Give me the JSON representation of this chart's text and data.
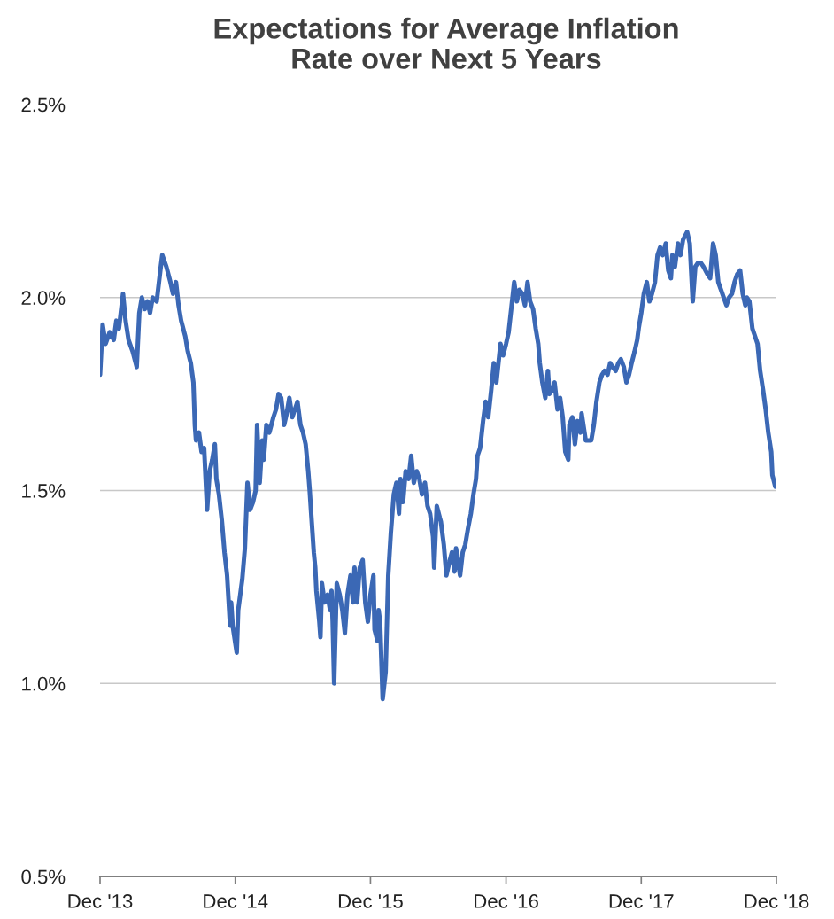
{
  "chart_data": {
    "type": "line",
    "title": "Expectations for Average Inflation\nRate over Next 5 Years",
    "xlim": [
      "2013-12-31",
      "2018-12-31"
    ],
    "xticks": [
      {
        "value": "2013-12-31",
        "label": "Dec '13"
      },
      {
        "value": "2014-12-31",
        "label": "Dec '14"
      },
      {
        "value": "2015-12-31",
        "label": "Dec '15"
      },
      {
        "value": "2016-12-31",
        "label": "Dec '16"
      },
      {
        "value": "2017-12-31",
        "label": "Dec '17"
      },
      {
        "value": "2018-12-31",
        "label": "Dec '18"
      }
    ],
    "ylim": [
      0.5,
      2.5
    ],
    "yticks": [
      {
        "value": 0.5,
        "label": "0.5%"
      },
      {
        "value": 1.0,
        "label": "1.0%"
      },
      {
        "value": 1.5,
        "label": "1.5%"
      },
      {
        "value": 2.0,
        "label": "2.0%"
      },
      {
        "value": 2.5,
        "label": "2.5%"
      }
    ],
    "grid": "y",
    "marker": "none",
    "line_style": "solid",
    "series": [
      {
        "color": "#3b68b5",
        "x": [
          "2013-12-31",
          "2014-01-07",
          "2014-01-15",
          "2014-01-26",
          "2014-02-06",
          "2014-02-13",
          "2014-02-20",
          "2014-03-03",
          "2014-03-10",
          "2014-03-18",
          "2014-03-29",
          "2014-04-09",
          "2014-04-16",
          "2014-04-23",
          "2014-05-01",
          "2014-05-08",
          "2014-05-15",
          "2014-05-22",
          "2014-06-02",
          "2014-06-13",
          "2014-06-17",
          "2014-06-28",
          "2014-07-09",
          "2014-07-16",
          "2014-07-24",
          "2014-07-31",
          "2014-08-07",
          "2014-08-18",
          "2014-08-25",
          "2014-09-02",
          "2014-09-09",
          "2014-09-13",
          "2014-09-16",
          "2014-09-24",
          "2014-10-01",
          "2014-10-08",
          "2014-10-16",
          "2014-10-23",
          "2014-10-30",
          "2014-11-06",
          "2014-11-10",
          "2014-11-17",
          "2014-11-25",
          "2014-12-02",
          "2014-12-09",
          "2014-12-17",
          "2014-12-20",
          "2014-12-24",
          "2015-01-04",
          "2015-01-08",
          "2015-01-19",
          "2015-01-26",
          "2015-02-02",
          "2015-02-09",
          "2015-02-17",
          "2015-02-24",
          "2015-02-28",
          "2015-03-07",
          "2015-03-14",
          "2015-03-18",
          "2015-03-25",
          "2015-04-02",
          "2015-04-13",
          "2015-04-20",
          "2015-04-27",
          "2015-05-04",
          "2015-05-12",
          "2015-05-19",
          "2015-05-26",
          "2015-06-03",
          "2015-06-10",
          "2015-06-17",
          "2015-06-25",
          "2015-07-02",
          "2015-07-09",
          "2015-07-16",
          "2015-07-20",
          "2015-07-24",
          "2015-07-31",
          "2015-08-04",
          "2015-08-07",
          "2015-08-15",
          "2015-08-18",
          "2015-08-22",
          "2015-08-29",
          "2015-09-06",
          "2015-09-13",
          "2015-09-17",
          "2015-09-20",
          "2015-09-24",
          "2015-10-01",
          "2015-10-09",
          "2015-10-16",
          "2015-10-23",
          "2015-10-30",
          "2015-11-07",
          "2015-11-14",
          "2015-11-18",
          "2015-11-25",
          "2015-12-02",
          "2015-12-10",
          "2015-12-17",
          "2015-12-24",
          "2015-12-31",
          "2016-01-08",
          "2016-01-11",
          "2016-01-19",
          "2016-01-22",
          "2016-01-26",
          "2016-02-02",
          "2016-02-10",
          "2016-02-17",
          "2016-02-24",
          "2016-03-03",
          "2016-03-10",
          "2016-03-17",
          "2016-03-21",
          "2016-03-28",
          "2016-04-04",
          "2016-04-12",
          "2016-04-19",
          "2016-04-26",
          "2016-05-04",
          "2016-05-11",
          "2016-05-18",
          "2016-05-26",
          "2016-06-02",
          "2016-06-09",
          "2016-06-17",
          "2016-06-20",
          "2016-06-27",
          "2016-07-05",
          "2016-07-08",
          "2016-07-16",
          "2016-07-23",
          "2016-07-30",
          "2016-08-07",
          "2016-08-14",
          "2016-08-18",
          "2016-08-29",
          "2016-09-05",
          "2016-09-12",
          "2016-09-19",
          "2016-09-27",
          "2016-10-04",
          "2016-10-11",
          "2016-10-15",
          "2016-10-22",
          "2016-10-30",
          "2016-11-06",
          "2016-11-13",
          "2016-11-21",
          "2016-11-28",
          "2016-12-05",
          "2016-12-16",
          "2016-12-23",
          "2016-12-31",
          "2017-01-07",
          "2017-01-14",
          "2017-01-22",
          "2017-01-29",
          "2017-02-05",
          "2017-02-13",
          "2017-02-20",
          "2017-02-27",
          "2017-03-06",
          "2017-03-14",
          "2017-03-21",
          "2017-03-28",
          "2017-04-01",
          "2017-04-08",
          "2017-04-16",
          "2017-04-23",
          "2017-04-27",
          "2017-05-04",
          "2017-05-11",
          "2017-05-19",
          "2017-05-26",
          "2017-06-02",
          "2017-06-09",
          "2017-06-17",
          "2017-06-20",
          "2017-06-28",
          "2017-07-05",
          "2017-07-12",
          "2017-07-20",
          "2017-07-23",
          "2017-08-03",
          "2017-08-11",
          "2017-08-18",
          "2017-08-25",
          "2017-09-01",
          "2017-09-09",
          "2017-09-16",
          "2017-09-23",
          "2017-10-01",
          "2017-10-08",
          "2017-10-15",
          "2017-10-23",
          "2017-10-30",
          "2017-11-06",
          "2017-11-14",
          "2017-11-21",
          "2017-11-28",
          "2017-12-05",
          "2017-12-13",
          "2017-12-20",
          "2017-12-24",
          "2017-12-31",
          "2018-01-07",
          "2018-01-15",
          "2018-01-22",
          "2018-01-29",
          "2018-02-06",
          "2018-02-13",
          "2018-02-20",
          "2018-02-27",
          "2018-03-07",
          "2018-03-14",
          "2018-03-21",
          "2018-03-25",
          "2018-04-01",
          "2018-04-09",
          "2018-04-16",
          "2018-04-23",
          "2018-05-04",
          "2018-05-11",
          "2018-05-19",
          "2018-05-26",
          "2018-06-02",
          "2018-06-10",
          "2018-06-17",
          "2018-06-28",
          "2018-07-05",
          "2018-07-13",
          "2018-07-20",
          "2018-07-27",
          "2018-08-07",
          "2018-08-18",
          "2018-08-25",
          "2018-09-02",
          "2018-09-09",
          "2018-09-16",
          "2018-09-24",
          "2018-10-01",
          "2018-10-08",
          "2018-10-12",
          "2018-10-19",
          "2018-10-27",
          "2018-11-03",
          "2018-11-10",
          "2018-11-17",
          "2018-11-25",
          "2018-12-02",
          "2018-12-09",
          "2018-12-17",
          "2018-12-20",
          "2018-12-28"
        ],
        "values": [
          1.8,
          1.93,
          1.88,
          1.91,
          1.89,
          1.94,
          1.92,
          2.01,
          1.94,
          1.89,
          1.86,
          1.82,
          1.96,
          2.0,
          1.97,
          1.99,
          1.96,
          2.0,
          1.99,
          2.08,
          2.11,
          2.08,
          2.04,
          2.01,
          2.04,
          1.98,
          1.94,
          1.9,
          1.86,
          1.83,
          1.78,
          1.67,
          1.63,
          1.65,
          1.6,
          1.61,
          1.45,
          1.55,
          1.58,
          1.62,
          1.53,
          1.49,
          1.42,
          1.34,
          1.28,
          1.15,
          1.21,
          1.15,
          1.08,
          1.19,
          1.27,
          1.35,
          1.52,
          1.45,
          1.47,
          1.5,
          1.67,
          1.52,
          1.63,
          1.58,
          1.67,
          1.65,
          1.69,
          1.71,
          1.75,
          1.74,
          1.67,
          1.7,
          1.74,
          1.69,
          1.71,
          1.73,
          1.67,
          1.65,
          1.62,
          1.55,
          1.5,
          1.44,
          1.34,
          1.3,
          1.24,
          1.16,
          1.12,
          1.26,
          1.21,
          1.23,
          1.19,
          1.24,
          1.16,
          1.0,
          1.26,
          1.23,
          1.19,
          1.13,
          1.23,
          1.28,
          1.21,
          1.3,
          1.21,
          1.3,
          1.32,
          1.21,
          1.16,
          1.23,
          1.28,
          1.14,
          1.11,
          1.19,
          1.16,
          0.96,
          1.03,
          1.28,
          1.39,
          1.49,
          1.52,
          1.44,
          1.53,
          1.47,
          1.55,
          1.53,
          1.59,
          1.52,
          1.55,
          1.53,
          1.49,
          1.52,
          1.46,
          1.44,
          1.38,
          1.3,
          1.46,
          1.43,
          1.42,
          1.36,
          1.28,
          1.31,
          1.34,
          1.29,
          1.35,
          1.28,
          1.34,
          1.36,
          1.4,
          1.44,
          1.49,
          1.53,
          1.59,
          1.61,
          1.68,
          1.73,
          1.69,
          1.76,
          1.83,
          1.78,
          1.88,
          1.85,
          1.88,
          1.91,
          1.97,
          2.04,
          1.99,
          2.02,
          2.01,
          1.98,
          2.04,
          1.99,
          1.97,
          1.92,
          1.88,
          1.83,
          1.78,
          1.74,
          1.81,
          1.75,
          1.76,
          1.78,
          1.71,
          1.74,
          1.69,
          1.6,
          1.58,
          1.67,
          1.69,
          1.62,
          1.68,
          1.65,
          1.7,
          1.63,
          1.63,
          1.63,
          1.67,
          1.73,
          1.78,
          1.8,
          1.81,
          1.8,
          1.83,
          1.82,
          1.81,
          1.83,
          1.84,
          1.82,
          1.78,
          1.8,
          1.83,
          1.86,
          1.89,
          1.92,
          1.96,
          2.01,
          2.04,
          1.99,
          2.01,
          2.04,
          2.11,
          2.13,
          2.11,
          2.14,
          2.07,
          2.05,
          2.11,
          2.08,
          2.14,
          2.11,
          2.15,
          2.17,
          2.14,
          1.99,
          2.08,
          2.09,
          2.09,
          2.08,
          2.06,
          2.05,
          2.14,
          2.11,
          2.04,
          2.01,
          1.98,
          2.0,
          2.01,
          2.04,
          2.06,
          2.07,
          2.01,
          1.98,
          2.0,
          1.99,
          1.92,
          1.9,
          1.88,
          1.81,
          1.76,
          1.71,
          1.65,
          1.6,
          1.54,
          1.51
        ]
      }
    ]
  }
}
